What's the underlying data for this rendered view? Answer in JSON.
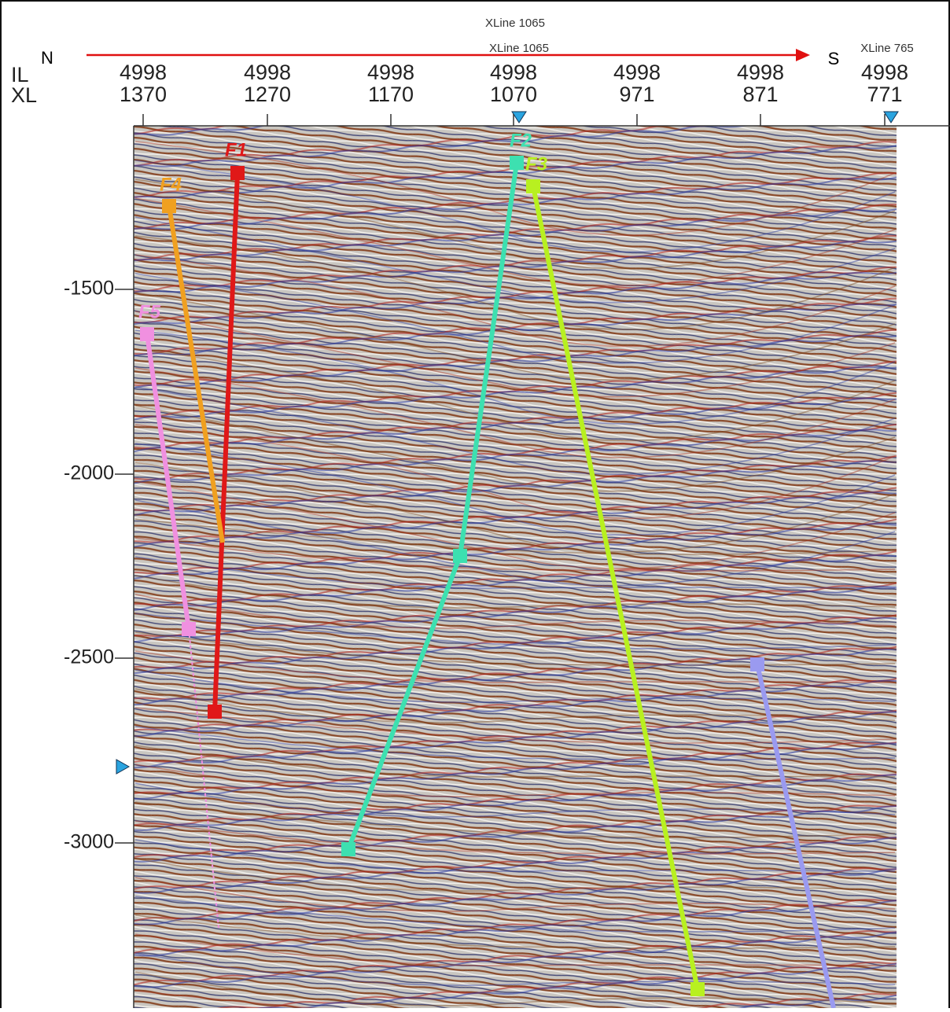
{
  "header": {
    "xline_top": "XLine 1065",
    "xline_second": "XLine 1065",
    "xline_right": "XLine 765",
    "north": "N",
    "south": "S",
    "il_label": "IL",
    "xl_label": "XL"
  },
  "columns": [
    {
      "il": "4998",
      "xl": "1370"
    },
    {
      "il": "4998",
      "xl": "1270"
    },
    {
      "il": "4998",
      "xl": "1170"
    },
    {
      "il": "4998",
      "xl": "1070"
    },
    {
      "il": "4998",
      "xl": "971"
    },
    {
      "il": "4998",
      "xl": "871"
    },
    {
      "il": "4998",
      "xl": "771"
    }
  ],
  "depth_ticks": [
    "-1500",
    "-2000",
    "-2500",
    "-3000"
  ],
  "faults": [
    "F1",
    "F2",
    "F3",
    "F4",
    "F5"
  ]
}
